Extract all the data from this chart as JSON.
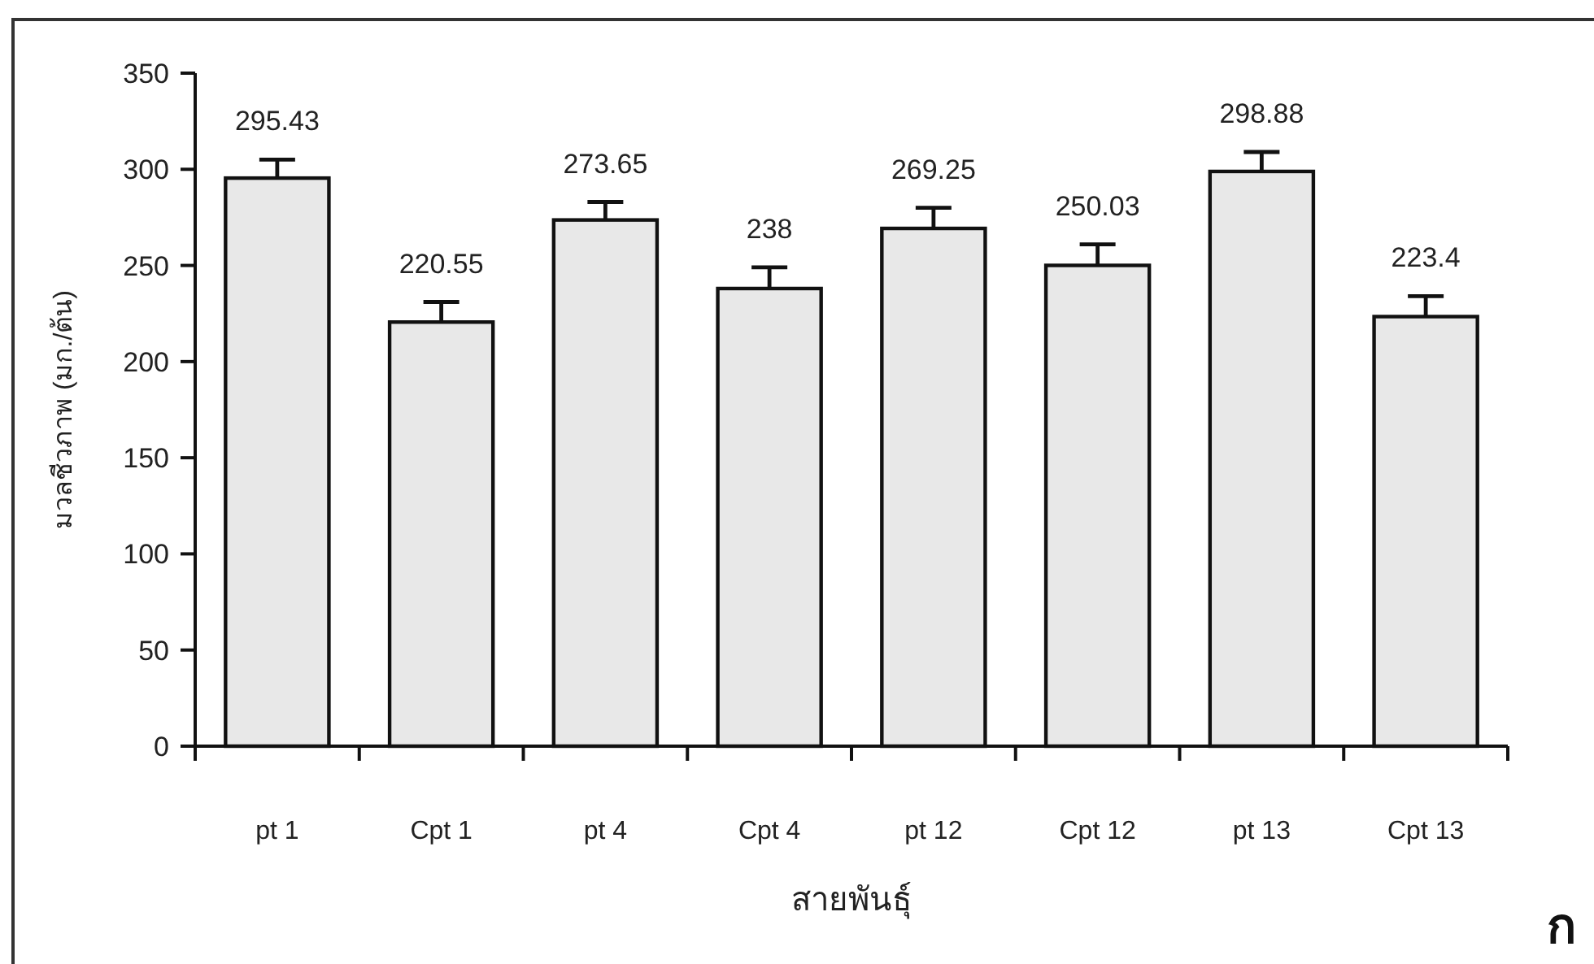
{
  "chart_data": {
    "type": "bar",
    "xlabel": "สายพันธุ์",
    "ylabel": "มวลชีวภาพ (มก./ต้น)",
    "annotations": [
      "ก"
    ],
    "categories": [
      "pt 1",
      "Cpt 1",
      "pt 4",
      "Cpt 4",
      "pt 12",
      "Cpt 12",
      "pt 13",
      "Cpt 13"
    ],
    "values": [
      295.43,
      220.55,
      273.65,
      238,
      269.25,
      250.03,
      298.88,
      223.4
    ],
    "errors": [
      [
        295.43,
        305
      ],
      [
        220.55,
        231
      ],
      [
        273.65,
        283
      ],
      [
        238,
        249
      ],
      [
        269.25,
        280
      ],
      [
        250.03,
        261
      ],
      [
        298.88,
        309
      ],
      [
        223.4,
        234
      ]
    ],
    "color": "#e8e8e8",
    "ylim": [
      0,
      350
    ],
    "yticks": [
      0,
      50,
      100,
      150,
      200,
      250,
      300,
      350
    ],
    "data_labels": true,
    "grid": false
  }
}
